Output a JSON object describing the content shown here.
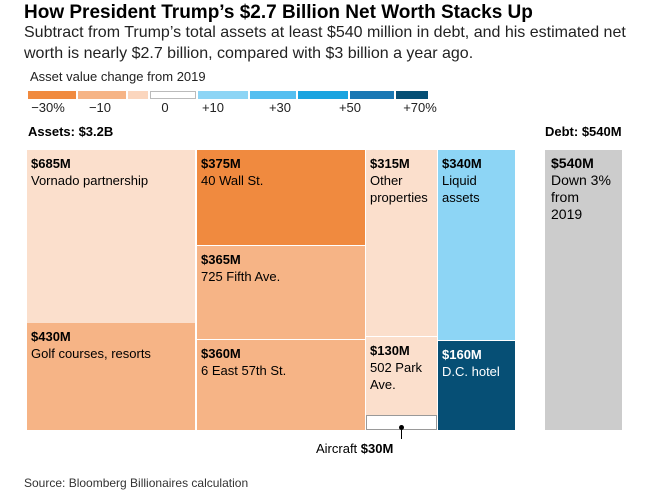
{
  "header": {
    "title": "How President Trump’s $2.7 Billion Net Worth Stacks Up",
    "subtitle": "Subtract from Trump’s total assets at least $540 million in debt, and his estimated net worth is nearly $2.7 billion, compared with $3 billion a year ago."
  },
  "legend": {
    "title": "Asset value change from 2019",
    "colors": [
      "#f08a3f",
      "#f6b486",
      "#fbd6be",
      "#ffffff",
      "#8dd5f5",
      "#55bff0",
      "#1aa4e0",
      "#1a78b4",
      "#064f75"
    ],
    "ticks": [
      "−30%",
      "−10",
      "0",
      "+10",
      "+30",
      "+50",
      "+70%"
    ]
  },
  "chart_data": {
    "type": "treemap",
    "title": "How President Trump’s $2.7 Billion Net Worth Stacks Up",
    "assets_label": "Assets: $3.2B",
    "debt_label": "Debt: $540M",
    "color_scale": {
      "label": "Asset value change from 2019",
      "tick_values": [
        -30,
        -10,
        0,
        10,
        30,
        50,
        70
      ],
      "unit": "%"
    },
    "assets": [
      {
        "key": "vornado",
        "value_label": "$685M",
        "value_musd": 685,
        "name": "Vornado partnership",
        "color": "#fbdfcc"
      },
      {
        "key": "golf",
        "value_label": "$430M",
        "value_musd": 430,
        "name": "Golf courses, resorts",
        "color": "#f6b486"
      },
      {
        "key": "wall40",
        "value_label": "$375M",
        "value_musd": 375,
        "name": "40 Wall St.",
        "color": "#f08a3f"
      },
      {
        "key": "fifth725",
        "value_label": "$365M",
        "value_musd": 365,
        "name": "725 Fifth Ave.",
        "color": "#f6b486"
      },
      {
        "key": "east57",
        "value_label": "$360M",
        "value_musd": 360,
        "name": "6 East 57th St.",
        "color": "#f6b486"
      },
      {
        "key": "other",
        "value_label": "$315M",
        "value_musd": 315,
        "name": "Other properties",
        "color": "#fbdfcc"
      },
      {
        "key": "park502",
        "value_label": "$130M",
        "value_musd": 130,
        "name": "502 Park Ave.",
        "color": "#fbdfcc"
      },
      {
        "key": "aircraft",
        "value_label": "",
        "value_musd": 30,
        "name": "",
        "color": "#ffffff"
      },
      {
        "key": "liquid",
        "value_label": "$340M",
        "value_musd": 340,
        "name": "Liquid assets",
        "color": "#8dd5f5"
      },
      {
        "key": "dchotel",
        "value_label": "$160M",
        "value_musd": 160,
        "name": "D.C. hotel",
        "color": "#064f75"
      }
    ],
    "debt": {
      "value_label": "$540M",
      "value_musd": 540,
      "name": "Down 3% from 2019",
      "color": "#cccccc"
    },
    "annotation": {
      "label": "Aircraft ",
      "value": "$30M"
    }
  },
  "footer": {
    "source": "Source: Bloomberg Billionaires calculation"
  }
}
